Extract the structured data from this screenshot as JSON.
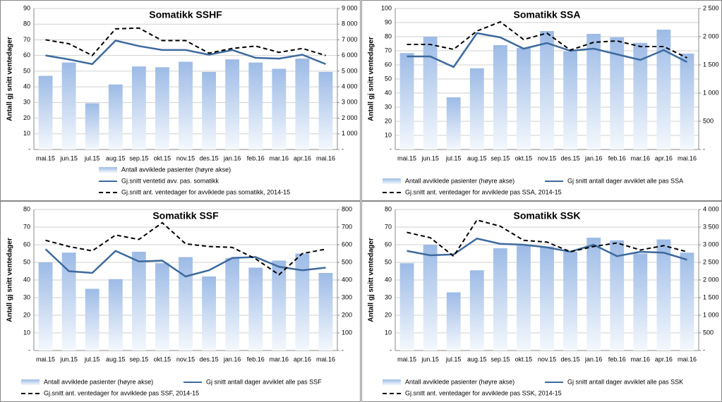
{
  "chart_data": [
    {
      "type": "combo",
      "title": "Somatikk SSHF",
      "y_label": "Antall gj snitt ventedager",
      "categories": [
        "mai.15",
        "jun.15",
        "jul.15",
        "aug.15",
        "sep.15",
        "okt.15",
        "nov.15",
        "des.15",
        "jan.16",
        "feb.16",
        "mar.16",
        "apr.16",
        "mai.16"
      ],
      "ylim": [
        0,
        90
      ],
      "yticks": [
        {
          "value": 0,
          "label": "-"
        },
        10,
        20,
        30,
        40,
        50,
        60,
        70,
        80,
        90
      ],
      "y2lim": [
        0,
        9000
      ],
      "y2ticks": [
        {
          "value": 0,
          "label": "-"
        },
        {
          "value": 1000,
          "label": "1 000"
        },
        {
          "value": 2000,
          "label": "2 000"
        },
        {
          "value": 3000,
          "label": "3 000"
        },
        {
          "value": 4000,
          "label": "4 000"
        },
        {
          "value": 5000,
          "label": "5 000"
        },
        {
          "value": 6000,
          "label": "6 000"
        },
        {
          "value": 7000,
          "label": "7 000"
        },
        {
          "value": 8000,
          "label": "8 000"
        },
        {
          "value": 9000,
          "label": "9 000"
        }
      ],
      "grid": true,
      "series": [
        {
          "name": "Antall avviklede pasienter (høyre akse)",
          "kind": "bar",
          "axis": "y2",
          "color": "#9dbbe6",
          "values": [
            4700,
            5550,
            2950,
            4150,
            5300,
            5250,
            5600,
            4950,
            5750,
            5550,
            5150,
            5800,
            4950
          ]
        },
        {
          "name": "Gj.snitt ventetid avv. pas. somatikk",
          "kind": "line",
          "color": "#3d6a9e",
          "values": [
            60,
            57.5,
            54.5,
            69.5,
            66,
            63.5,
            63.5,
            60.5,
            63.5,
            58.5,
            58,
            60.5,
            54.5
          ]
        },
        {
          "name": "Gj.snitt ant. ventedager for avviklede pas somatikk, 2014-15",
          "kind": "line",
          "dashed": true,
          "color": "#000000",
          "values": [
            70,
            67.5,
            60,
            77,
            77.5,
            69.5,
            69.5,
            61.5,
            64.5,
            66,
            62,
            64.5,
            60
          ]
        }
      ]
    },
    {
      "type": "combo",
      "title": "Somatikk SSA",
      "y_label": "Antall gj snitt ventedager",
      "categories": [
        "mai.15",
        "jun.15",
        "jul.15",
        "aug.15",
        "sep.15",
        "okt.15",
        "nov.15",
        "des.15",
        "jan.16",
        "feb.16",
        "mar.16",
        "apr.16",
        "mai.16"
      ],
      "ylim": [
        0,
        100
      ],
      "yticks": [
        {
          "value": 0,
          "label": "-"
        },
        10,
        20,
        30,
        40,
        50,
        60,
        70,
        80,
        90,
        100
      ],
      "y2lim": [
        0,
        2500
      ],
      "y2ticks": [
        {
          "value": 0,
          "label": "-"
        },
        500,
        {
          "value": 1000,
          "label": "1 000"
        },
        {
          "value": 1500,
          "label": "1 500"
        },
        {
          "value": 2000,
          "label": "2 000"
        },
        {
          "value": 2500,
          "label": "2 500"
        }
      ],
      "grid": true,
      "series": [
        {
          "name": "Antall avviklede pasienter (høyre akse)",
          "kind": "bar",
          "axis": "y2",
          "color": "#9dbbe6",
          "values": [
            1710,
            2000,
            925,
            1440,
            1850,
            1800,
            2100,
            1740,
            2050,
            1990,
            1890,
            2125,
            1700
          ]
        },
        {
          "name": "Gj snitt antall dager avviklet alle pas SSA",
          "kind": "line",
          "color": "#3d6a9e",
          "values": [
            66,
            66,
            58.5,
            82.5,
            79.5,
            71.5,
            75.5,
            70,
            71.5,
            67.5,
            63.5,
            70.5,
            62
          ]
        },
        {
          "name": "Gj.snitt ant. ventedager for avviklede pas SSA, 2014-15",
          "kind": "line",
          "dashed": true,
          "color": "#000000",
          "values": [
            74.5,
            74.5,
            71,
            84,
            90.5,
            78,
            82.5,
            70.5,
            76,
            77,
            73,
            73,
            65
          ]
        }
      ]
    },
    {
      "type": "combo",
      "title": "Somatikk SSF",
      "y_label": "Antall gj snitt ventedager",
      "categories": [
        "mai.15",
        "jun.15",
        "jul.15",
        "aug.15",
        "sep.15",
        "okt.15",
        "nov.15",
        "des.15",
        "jan.16",
        "feb.16",
        "mar.16",
        "apr.16",
        "mai.16"
      ],
      "ylim": [
        0,
        80
      ],
      "yticks": [
        {
          "value": 0,
          "label": "-"
        },
        10,
        20,
        30,
        40,
        50,
        60,
        70,
        80
      ],
      "y2lim": [
        0,
        800
      ],
      "y2ticks": [
        {
          "value": 0,
          "label": "-"
        },
        100,
        200,
        300,
        400,
        500,
        600,
        700,
        800
      ],
      "grid": true,
      "series": [
        {
          "name": "Antall avviklede pasienter (høyre akse)",
          "kind": "bar",
          "axis": "y2",
          "color": "#9dbbe6",
          "values": [
            500,
            555,
            350,
            405,
            560,
            495,
            530,
            420,
            525,
            470,
            510,
            550,
            440
          ]
        },
        {
          "name": "Gj snitt antall dager avviklet alle pas SSF",
          "kind": "line",
          "color": "#3d6a9e",
          "values": [
            57.5,
            45,
            44,
            56.5,
            50.5,
            51,
            42,
            45.5,
            52.5,
            53,
            47.5,
            45.5,
            47
          ]
        },
        {
          "name": "Gj.snitt ant. ventedager for avviklede pas SSF, 2014-15",
          "kind": "line",
          "dashed": true,
          "color": "#000000",
          "values": [
            62.5,
            59,
            56.5,
            65.5,
            63,
            72.5,
            60.5,
            59,
            58.5,
            52,
            43,
            55,
            57.5
          ]
        }
      ]
    },
    {
      "type": "combo",
      "title": "Somatikk SSK",
      "y_label": "Antall gj snitt ventedager",
      "categories": [
        "mai.15",
        "jun.15",
        "jul.15",
        "aug.15",
        "sep.15",
        "okt.15",
        "nov.15",
        "des.15",
        "jan.16",
        "feb.16",
        "mar.16",
        "apr.16",
        "mai.16"
      ],
      "ylim": [
        0,
        80
      ],
      "yticks": [
        {
          "value": 0,
          "label": "-"
        },
        10,
        20,
        30,
        40,
        50,
        60,
        70,
        80
      ],
      "y2lim": [
        0,
        4000
      ],
      "y2ticks": [
        {
          "value": 0,
          "label": "-"
        },
        500,
        {
          "value": 1000,
          "label": "1 000"
        },
        {
          "value": 1500,
          "label": "1 500"
        },
        {
          "value": 2000,
          "label": "2 000"
        },
        {
          "value": 2500,
          "label": "2 500"
        },
        {
          "value": 3000,
          "label": "3 000"
        },
        {
          "value": 3500,
          "label": "3 500"
        },
        {
          "value": 4000,
          "label": "4 000"
        }
      ],
      "grid": true,
      "series": [
        {
          "name": "Antall avviklede pasienter (høyre akse)",
          "kind": "bar",
          "axis": "y2",
          "color": "#9dbbe6",
          "values": [
            2475,
            3000,
            1650,
            2275,
            2900,
            2975,
            2950,
            2800,
            3200,
            3125,
            2750,
            3150,
            2775
          ]
        },
        {
          "name": "Gj snitt antall dager avviklet alle pas SSK",
          "kind": "line",
          "color": "#3d6a9e",
          "values": [
            56.5,
            54,
            54.5,
            63.5,
            60.5,
            60,
            58.5,
            56,
            60,
            53.5,
            56,
            55.5,
            51.5
          ]
        },
        {
          "name": "Gj.snitt ant. ventedager for avviklede pas SSK, 2014-15",
          "kind": "line",
          "dashed": true,
          "color": "#000000",
          "values": [
            67,
            64,
            53.5,
            74,
            70.5,
            62.5,
            61.5,
            56,
            59,
            61,
            57,
            59.5,
            56
          ]
        }
      ]
    }
  ]
}
